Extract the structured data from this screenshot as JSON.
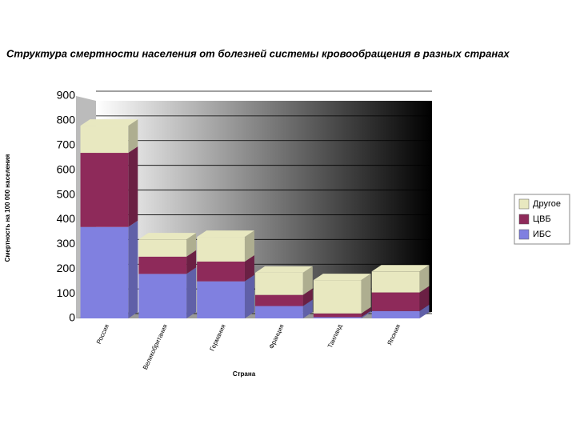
{
  "chart_data": {
    "type": "bar",
    "stacked": true,
    "three_d": true,
    "title": "Структура смертности населения от болезней системы кровообращения в разных странах",
    "y_label": "Смертность на 100 000 населения",
    "x_label": "Страна",
    "categories": [
      "Россия",
      "Великобритания",
      "Германия",
      "Франция",
      "Таиланд",
      "Япония"
    ],
    "series": [
      {
        "name": "ИБС",
        "color": "#8080e0",
        "values": [
          370,
          180,
          150,
          50,
          5,
          30
        ]
      },
      {
        "name": "ЦВБ",
        "color": "#8e2a5a",
        "values": [
          300,
          70,
          80,
          45,
          15,
          75
        ]
      },
      {
        "name": "Другое",
        "color": "#e8e8c0",
        "values": [
          110,
          70,
          100,
          90,
          135,
          85
        ]
      }
    ],
    "ylim": [
      0,
      900
    ],
    "yticks": [
      0,
      100,
      200,
      300,
      400,
      500,
      600,
      700,
      800,
      900
    ],
    "grid": true,
    "legend": "right"
  }
}
